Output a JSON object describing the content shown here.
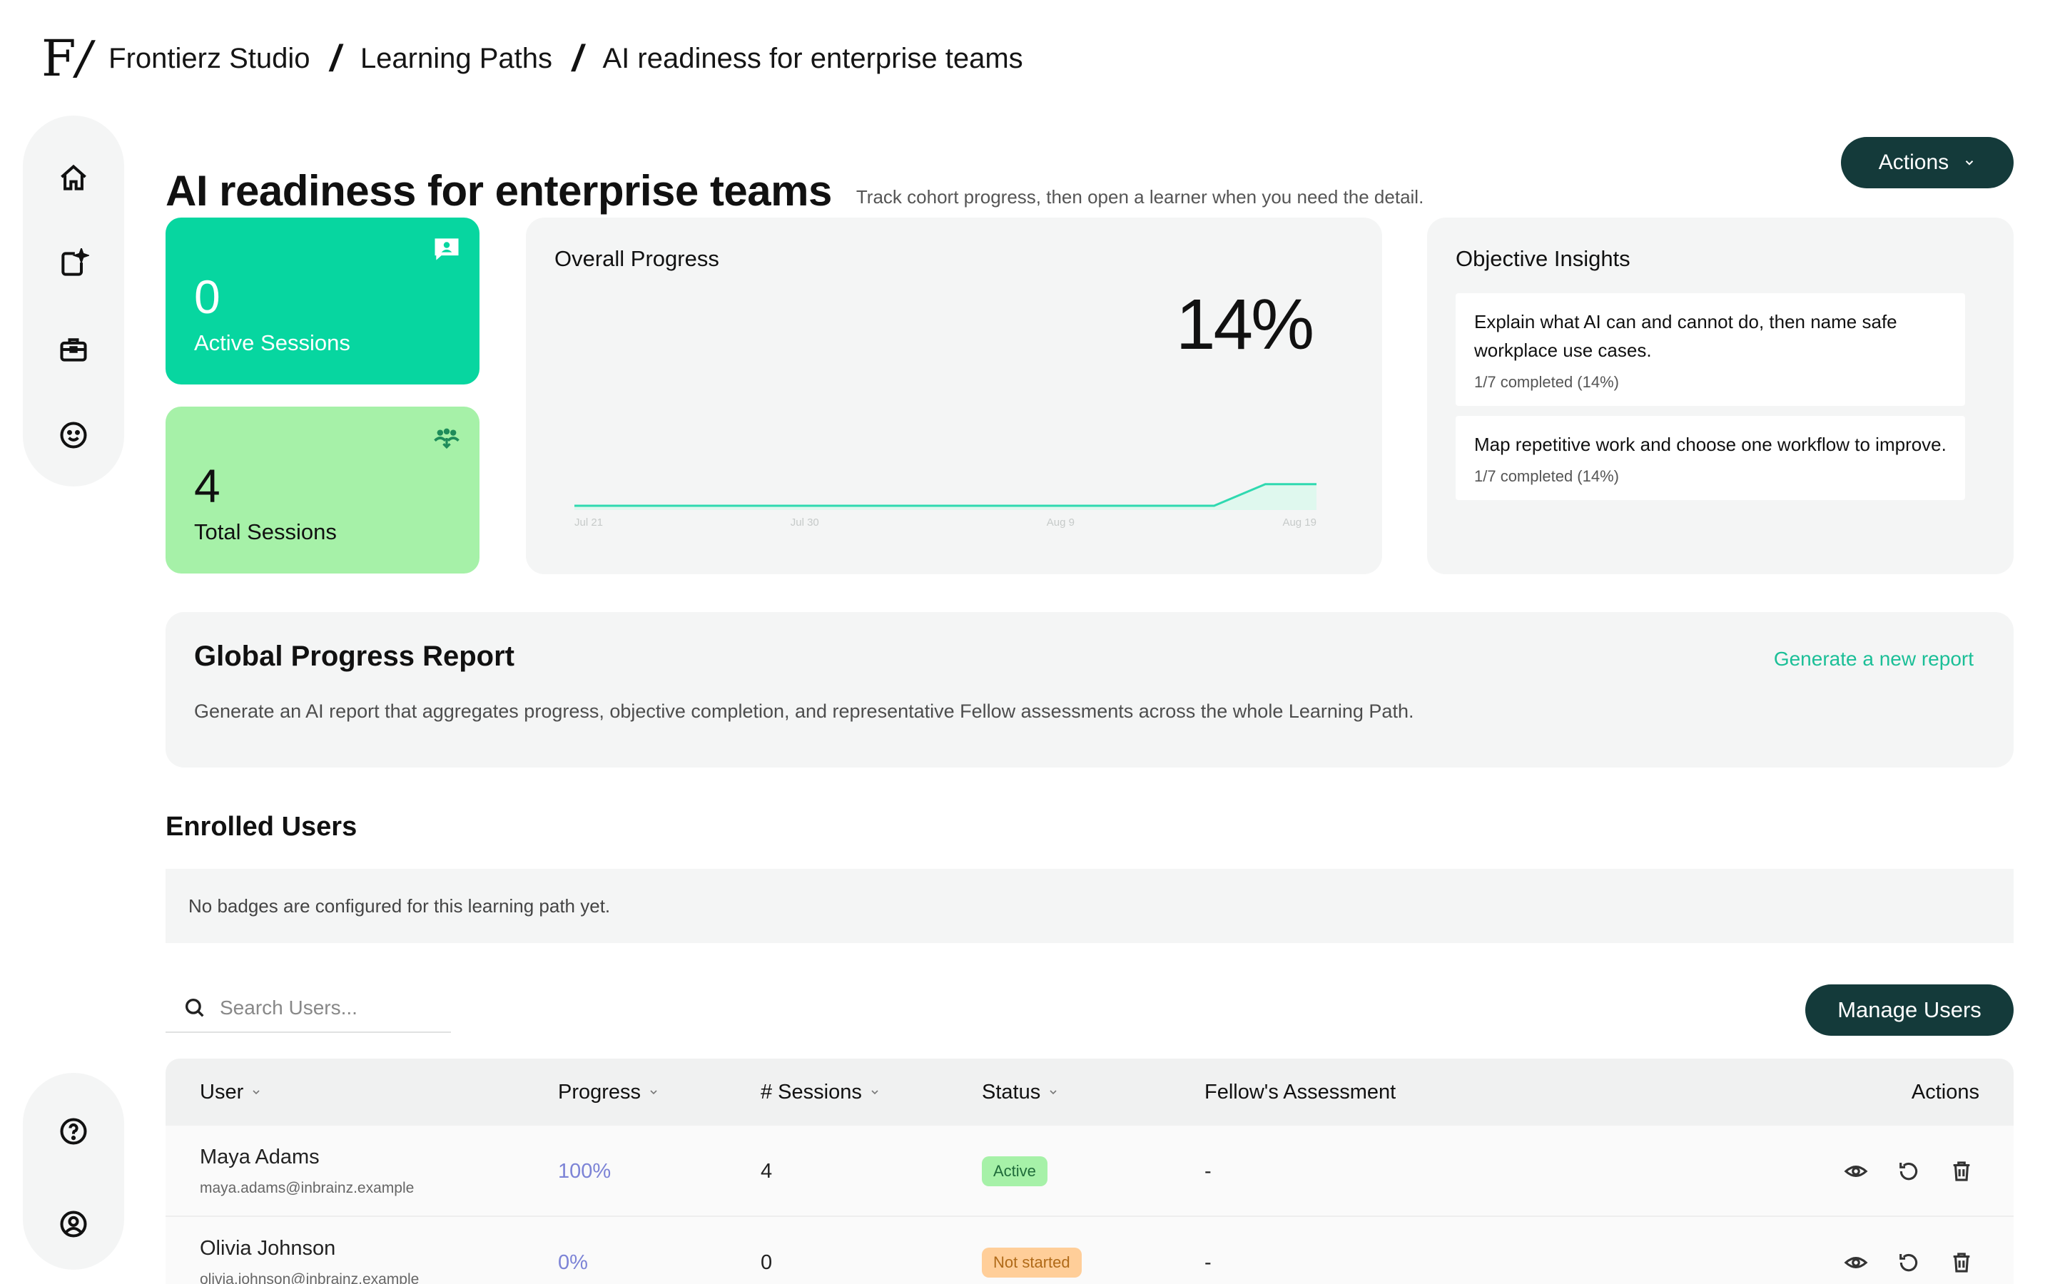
{
  "breadcrumb": {
    "logo_letter": "F",
    "org": "Frontierz Studio",
    "section": "Learning Paths",
    "current": "AI readiness for enterprise teams"
  },
  "sidebar": {
    "top_items": [
      {
        "icon": "home-icon"
      },
      {
        "icon": "new-item-icon"
      },
      {
        "icon": "briefcase-icon"
      },
      {
        "icon": "smiley-icon"
      }
    ],
    "bottom_items": [
      {
        "icon": "help-icon"
      },
      {
        "icon": "account-icon"
      }
    ]
  },
  "header": {
    "title": "AI readiness for enterprise teams",
    "subtitle": "Track cohort progress, then open a learner when you need the detail.",
    "actions_label": "Actions"
  },
  "stats": {
    "active_sessions": {
      "value": "0",
      "label": "Active Sessions",
      "icon": "chat-user-icon",
      "color": "#07d6a0"
    },
    "total_sessions": {
      "value": "4",
      "label": "Total Sessions",
      "icon": "group-icon",
      "color": "#a6f1a8"
    }
  },
  "overall_progress": {
    "title": "Overall Progress",
    "percent": "14%"
  },
  "chart_data": {
    "type": "area",
    "x_ticks": [
      "Jul 21",
      "Jul 30",
      "Aug 9",
      "Aug 19"
    ],
    "x": [
      "Jul 21",
      "Aug 15",
      "Aug 17",
      "Aug 19"
    ],
    "values": [
      0,
      0,
      14,
      14
    ],
    "ylim": [
      0,
      50
    ],
    "color": "#2fd9b0",
    "fill": "#dff8ee",
    "grid": false
  },
  "objective_insights": {
    "title": "Objective Insights",
    "items": [
      {
        "text": "Explain what AI can and cannot do, then name safe workplace use cases.",
        "meta": "1/7 completed (14%)"
      },
      {
        "text": "Map repetitive work and choose one workflow to improve.",
        "meta": "1/7 completed (14%)"
      }
    ]
  },
  "report": {
    "title": "Global Progress Report",
    "link": "Generate a new report",
    "description": "Generate an AI report that aggregates progress, objective completion, and representative Fellow assessments across the whole Learning Path."
  },
  "enrolled": {
    "title": "Enrolled Users",
    "badges_note": "No badges are configured for this learning path yet.",
    "search_placeholder": "Search Users...",
    "manage_label": "Manage Users"
  },
  "table": {
    "columns": {
      "user": "User",
      "progress": "Progress",
      "sessions": "# Sessions",
      "status": "Status",
      "assessment": "Fellow's Assessment",
      "actions": "Actions"
    },
    "rows": [
      {
        "name": "Maya Adams",
        "email": "maya.adams@inbrainz.example",
        "progress": "100%",
        "sessions": "4",
        "status": "Active",
        "status_kind": "active",
        "assessment": "-"
      },
      {
        "name": "Olivia Johnson",
        "email": "olivia.johnson@inbrainz.example",
        "progress": "0%",
        "sessions": "0",
        "status": "Not started",
        "status_kind": "notstarted",
        "assessment": "-"
      }
    ]
  }
}
